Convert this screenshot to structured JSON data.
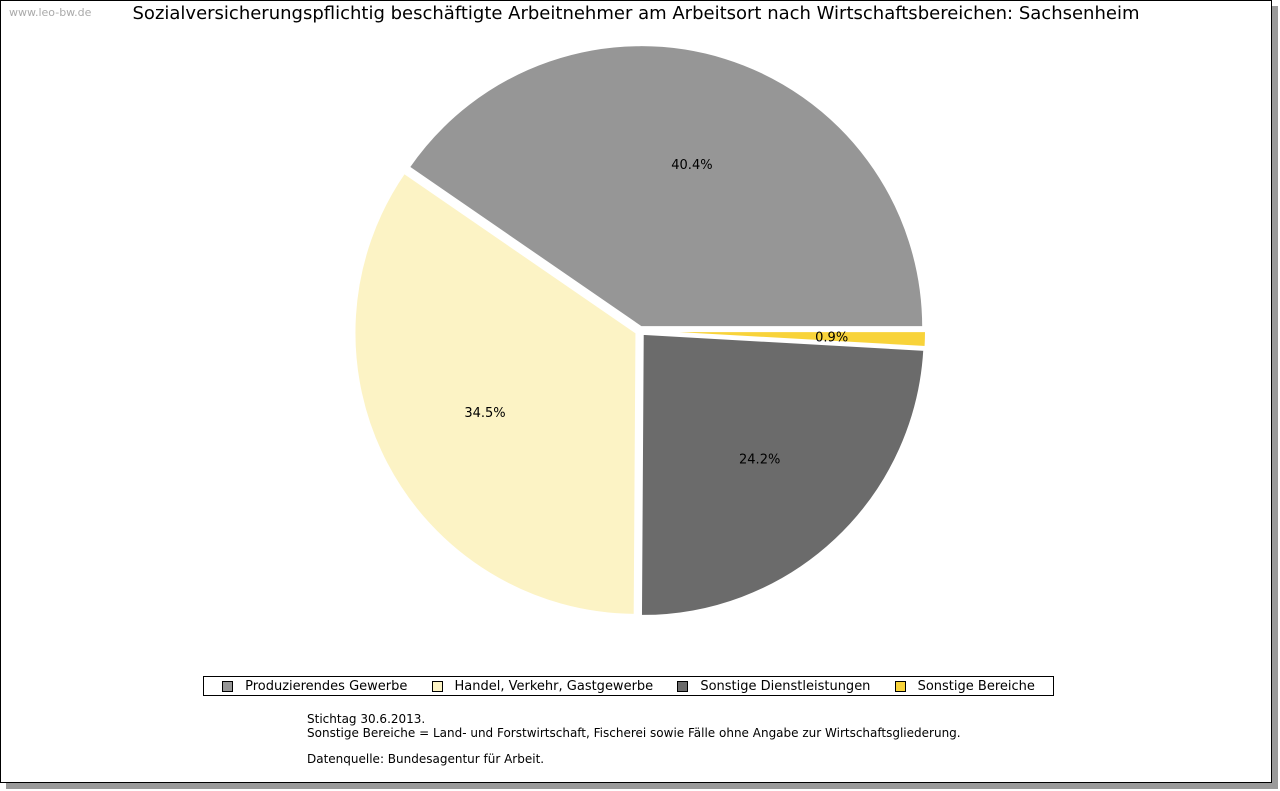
{
  "watermark": "www.leo-bw.de",
  "chart_data": {
    "type": "pie",
    "title": "Sozialversicherungspflichtig beschäftigte Arbeitnehmer am Arbeitsort nach Wirtschaftsbereichen: Sachsenheim",
    "slices": [
      {
        "name": "Produzierendes Gewerbe",
        "value": 40.4,
        "label": "40.4%",
        "color": "#969696"
      },
      {
        "name": "Handel, Verkehr, Gastgewerbe",
        "value": 34.5,
        "label": "34.5%",
        "color": "#fcf3c5"
      },
      {
        "name": "Sonstige Dienstleistungen",
        "value": 24.2,
        "label": "24.2%",
        "color": "#6b6b6b"
      },
      {
        "name": "Sonstige Bereiche",
        "value": 0.9,
        "label": "0.9%",
        "color": "#f8d33a"
      }
    ],
    "legend_position": "bottom"
  },
  "notes": {
    "stichtag": "Stichtag 30.6.2013.",
    "sonstige": "Sonstige Bereiche = Land- und Forstwirtschaft, Fischerei sowie Fälle ohne Angabe zur Wirtschaftsgliederung.",
    "quelle": "Datenquelle: Bundesagentur für Arbeit."
  }
}
